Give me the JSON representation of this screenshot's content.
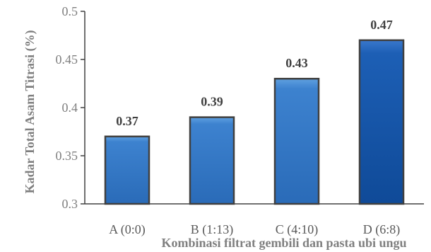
{
  "chart_data": {
    "type": "bar",
    "categories": [
      "A (0:0)",
      "B (1:13)",
      "C (4:10)",
      "D (6:8)"
    ],
    "values": [
      0.37,
      0.39,
      0.43,
      0.47
    ],
    "data_labels": [
      "0.37",
      "0.39",
      "0.43",
      "0.47"
    ],
    "ylim": [
      0.3,
      0.5
    ],
    "yticks": [
      "0.3",
      "0.35",
      "0.4",
      "0.45",
      "0.5"
    ],
    "xlabel": "Kombinasi filtrat gembili dan pasta ubi ungu",
    "ylabel": "Kadar Total Asam Titrasi (%)",
    "grid": false,
    "legend": "none",
    "colors": {
      "bars": [
        "#3a78be",
        "#3a78be",
        "#3a78be",
        "#1a56a8"
      ],
      "bar_edge": "#404040",
      "axis": "#404040"
    }
  }
}
